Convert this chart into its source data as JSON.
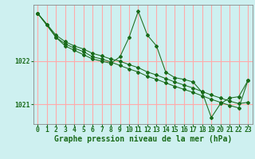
{
  "title": "Graphe pression niveau de la mer (hPa)",
  "background_color": "#cef0f0",
  "grid_color": "#ffaaaa",
  "line_color": "#1a6b1a",
  "xlim": [
    -0.5,
    23.5
  ],
  "ylim": [
    1020.55,
    1023.3
  ],
  "yticks": [
    1021,
    1022
  ],
  "xticks": [
    0,
    1,
    2,
    3,
    4,
    5,
    6,
    7,
    8,
    9,
    10,
    11,
    12,
    13,
    14,
    15,
    16,
    17,
    18,
    19,
    20,
    21,
    22,
    23
  ],
  "series": [
    {
      "x": [
        0,
        1,
        2,
        3,
        4,
        5,
        6,
        7,
        8,
        9,
        10,
        11,
        12,
        13,
        14,
        15,
        16,
        17,
        18,
        19,
        20,
        21,
        22,
        23
      ],
      "y": [
        1023.1,
        1022.85,
        1022.6,
        1022.45,
        1022.35,
        1022.28,
        1022.18,
        1022.12,
        1022.05,
        1022.0,
        1021.92,
        1021.85,
        1021.75,
        1021.68,
        1021.6,
        1021.52,
        1021.45,
        1021.38,
        1021.3,
        1021.22,
        1021.15,
        1021.08,
        1021.02,
        1021.05
      ]
    },
    {
      "x": [
        0,
        2,
        3,
        4,
        5,
        6,
        7,
        8,
        9,
        10,
        11,
        12,
        13,
        14,
        15,
        16,
        17,
        18,
        19,
        20,
        21,
        22,
        23
      ],
      "y": [
        1023.1,
        1022.55,
        1022.4,
        1022.3,
        1022.22,
        1022.1,
        1022.05,
        1021.98,
        1021.9,
        1021.82,
        1021.75,
        1021.65,
        1021.58,
        1021.5,
        1021.42,
        1021.35,
        1021.28,
        1021.2,
        1021.12,
        1021.05,
        1020.98,
        1020.92,
        1021.55
      ]
    },
    {
      "x": [
        0,
        1,
        2,
        3,
        4,
        5,
        6,
        7,
        8,
        9,
        10,
        11,
        12,
        13,
        14,
        15,
        16,
        17,
        18,
        19,
        20,
        21,
        22,
        23
      ],
      "y": [
        1023.1,
        1022.85,
        1022.55,
        1022.35,
        1022.25,
        1022.15,
        1022.05,
        1022.0,
        1021.95,
        1022.1,
        1022.55,
        1023.15,
        1022.6,
        1022.35,
        1021.75,
        1021.62,
        1021.58,
        1021.52,
        1021.28,
        1020.7,
        1021.02,
        1021.15,
        1021.18,
        1021.55
      ]
    }
  ],
  "ticklabel_fontsize": 5.8,
  "xlabel_fontsize": 7.0
}
